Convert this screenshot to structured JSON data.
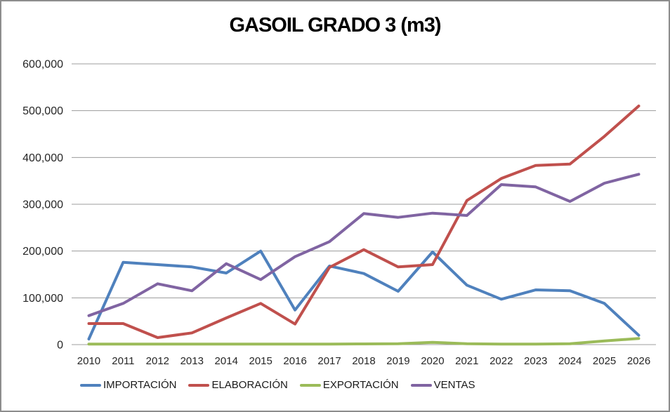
{
  "title": "GASOIL GRADO 3 (m3)",
  "chart_data": {
    "type": "line",
    "title": "GASOIL GRADO 3 (m3)",
    "xlabel": "",
    "ylabel": "",
    "x": [
      "2010",
      "2011",
      "2012",
      "2013",
      "2014",
      "2015",
      "2016",
      "2017",
      "2018",
      "2019",
      "2020",
      "2021",
      "2022",
      "2023",
      "2024",
      "2025",
      "2026"
    ],
    "ylim": [
      0,
      600000
    ],
    "grid": "horizontal",
    "legend_position": "bottom",
    "yticks": [
      {
        "value": 0,
        "label": "0"
      },
      {
        "value": 100000,
        "label": "100,000"
      },
      {
        "value": 200000,
        "label": "200,000"
      },
      {
        "value": 300000,
        "label": "300,000"
      },
      {
        "value": 400000,
        "label": "400,000"
      },
      {
        "value": 500000,
        "label": "500,000"
      },
      {
        "value": 600000,
        "label": "600,000"
      }
    ],
    "series": [
      {
        "name": "IMPORTACIÓN",
        "color": "#4F81BD",
        "values": [
          12000,
          176000,
          171000,
          166000,
          153000,
          200000,
          74000,
          168000,
          152000,
          114000,
          198000,
          127000,
          97000,
          117000,
          115000,
          88000,
          20000
        ]
      },
      {
        "name": "ELABORACIÓN",
        "color": "#C0504D",
        "values": [
          45000,
          45000,
          15000,
          25000,
          57000,
          88000,
          44000,
          165000,
          203000,
          166000,
          171000,
          308000,
          355000,
          383000,
          386000,
          445000,
          510000
        ]
      },
      {
        "name": "EXPORTACIÓN",
        "color": "#9BBB59",
        "values": [
          1000,
          1000,
          1000,
          1000,
          1000,
          1000,
          1000,
          1000,
          1500,
          2000,
          5000,
          2000,
          1000,
          1000,
          2000,
          8000,
          13000
        ]
      },
      {
        "name": "VENTAS",
        "color": "#8064A2",
        "values": [
          62000,
          88000,
          130000,
          115000,
          173000,
          139000,
          188000,
          220000,
          280000,
          272000,
          281000,
          276000,
          342000,
          337000,
          306000,
          345000,
          364000
        ]
      }
    ],
    "gridline_color": "#9c9c9c"
  }
}
